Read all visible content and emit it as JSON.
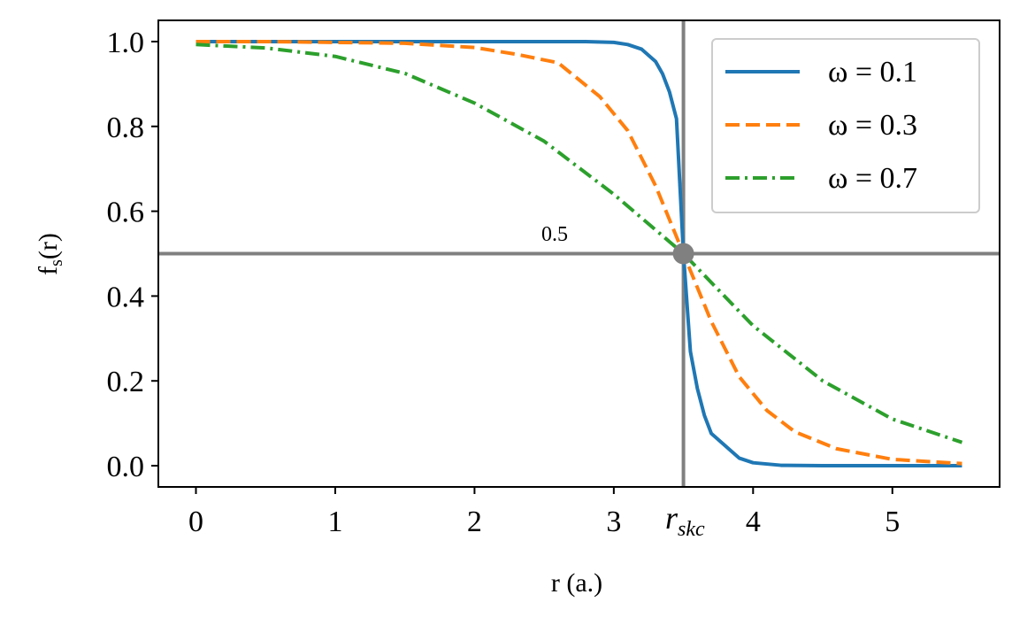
{
  "chart_data": {
    "type": "line",
    "xlabel": "r (a.)",
    "ylabel_main": "f",
    "ylabel_sub": "s",
    "ylabel_tail": "(r)",
    "xlim": [
      -0.27,
      5.77
    ],
    "ylim": [
      -0.05,
      1.05
    ],
    "xticks": [
      0,
      1,
      2,
      3,
      4,
      5
    ],
    "yticks": [
      0.0,
      0.2,
      0.4,
      0.6,
      0.8,
      1.0
    ],
    "xtick_labels": [
      "0",
      "1",
      "2",
      "3",
      "4",
      "5"
    ],
    "ytick_labels": [
      "0.0",
      "0.2",
      "0.4",
      "0.6",
      "0.8",
      "1.0"
    ],
    "grid": false,
    "legend_position": "top-right",
    "r_skc": 3.5,
    "reference_lines": {
      "vertical_x": 3.5,
      "horizontal_y": 0.5
    },
    "annotations": {
      "half_label": "0.5",
      "rskc_main": "r",
      "rskc_sub": "skc"
    },
    "series": [
      {
        "name": "ω = 0.1",
        "color": "#1f77b4",
        "dash": "solid",
        "x": [
          0,
          0.5,
          1,
          1.5,
          2,
          2.5,
          2.8,
          3.0,
          3.1,
          3.2,
          3.3,
          3.35,
          3.4,
          3.45,
          3.5,
          3.55,
          3.6,
          3.65,
          3.7,
          3.8,
          3.9,
          4.0,
          4.2,
          4.5,
          5.0,
          5.5
        ],
        "y": [
          1.0,
          1.0,
          1.0,
          1.0,
          1.0,
          1.0,
          1.0,
          0.998,
          0.993,
          0.982,
          0.953,
          0.924,
          0.881,
          0.818,
          0.5,
          0.269,
          0.182,
          0.119,
          0.076,
          0.047,
          0.018,
          0.007,
          0.001,
          0.0,
          0.0,
          0.0
        ]
      },
      {
        "name": "ω = 0.3",
        "color": "#ff7f0e",
        "dash": "dashed",
        "x": [
          0,
          0.5,
          1,
          1.5,
          2,
          2.3,
          2.6,
          2.9,
          3.1,
          3.3,
          3.5,
          3.7,
          3.9,
          4.1,
          4.3,
          4.6,
          5.0,
          5.5
        ],
        "y": [
          1.0,
          1.0,
          0.998,
          0.996,
          0.986,
          0.97,
          0.95,
          0.87,
          0.79,
          0.66,
          0.5,
          0.34,
          0.21,
          0.13,
          0.08,
          0.04,
          0.015,
          0.005
        ]
      },
      {
        "name": "ω = 0.7",
        "color": "#2ca02c",
        "dash": "dashdot",
        "x": [
          0,
          0.5,
          1,
          1.5,
          2,
          2.5,
          3.0,
          3.5,
          4.0,
          4.5,
          5.0,
          5.5
        ],
        "y": [
          0.993,
          0.985,
          0.965,
          0.925,
          0.855,
          0.765,
          0.64,
          0.5,
          0.33,
          0.2,
          0.11,
          0.055
        ]
      }
    ]
  }
}
